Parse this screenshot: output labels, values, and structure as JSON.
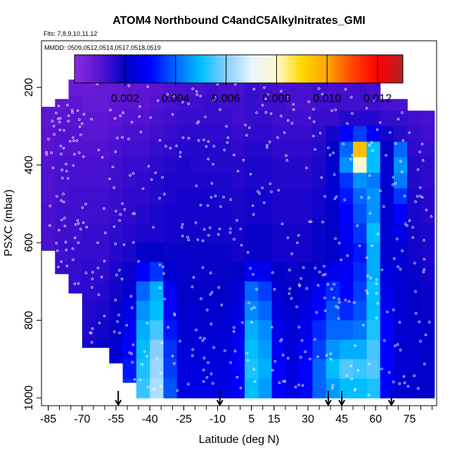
{
  "chart_data": {
    "type": "heatmap",
    "title": "ATOM4 Northbound C4andC5Alkylnitrates_GMI",
    "flights_label": "Flts: 7,8,9,10,11,12",
    "dates_label": "MMDD: 0509,0512,0514,0517,0518,0519",
    "xlabel": "Latitude (deg N)",
    "ylabel": "PSXC (mbar)",
    "xlim": [
      -88,
      87
    ],
    "ylim": [
      1020,
      80
    ],
    "x_ticks": [
      -85,
      -70,
      -55,
      -40,
      -25,
      -10,
      5,
      15,
      30,
      45,
      60,
      75
    ],
    "x_tick_labels": [
      "-85",
      "-70",
      "-55",
      "-40",
      "-25",
      "-10",
      "5",
      "15",
      "30",
      "45",
      "60",
      "75"
    ],
    "y_ticks": [
      200,
      400,
      600,
      800,
      1000
    ],
    "y_tick_labels": [
      "200",
      "400",
      "600",
      "800",
      "1000"
    ],
    "colorbar": {
      "min": 0.0,
      "max": 0.013,
      "ticks": [
        0.002,
        0.004,
        0.006,
        0.008,
        0.01,
        0.012
      ],
      "tick_labels": [
        "0.002",
        "0.004",
        "0.006",
        "0.008",
        "0.010",
        "0.012"
      ],
      "colors": [
        "#8a2be2",
        "#5a14d2",
        "#0000c8",
        "#0000ff",
        "#0066ff",
        "#00bfff",
        "#87ceff",
        "#e6f5ff",
        "#fffacd",
        "#ffd700",
        "#ffa500",
        "#ff4500",
        "#ff0000",
        "#b22222"
      ]
    },
    "arrows_lat": [
      -54,
      -9,
      39,
      45,
      67
    ],
    "lat_bins": [
      -88,
      -82,
      -76,
      -70,
      -64,
      -58,
      -52,
      -46,
      -40,
      -34,
      -28,
      -22,
      -16,
      -10,
      -4,
      2,
      8,
      14,
      20,
      26,
      32,
      38,
      44,
      50,
      56,
      62,
      68,
      74,
      80,
      86
    ],
    "p_bins": [
      180,
      220,
      260,
      300,
      340,
      380,
      420,
      460,
      500,
      550,
      600,
      650,
      700,
      750,
      800,
      850,
      900,
      950,
      1000
    ],
    "column_top_p": [
      250,
      230,
      180,
      180,
      180,
      180,
      180,
      180,
      180,
      180,
      180,
      180,
      180,
      180,
      180,
      180,
      180,
      180,
      180,
      180,
      180,
      180,
      180,
      180,
      180,
      230,
      230,
      260,
      260
    ],
    "column_bottom_p": [
      620,
      680,
      730,
      870,
      870,
      910,
      960,
      1000,
      1000,
      1000,
      1000,
      1000,
      1000,
      1000,
      1000,
      1000,
      1000,
      1000,
      1000,
      1000,
      1000,
      1000,
      1000,
      1000,
      1000,
      1000,
      1000,
      1000,
      1000
    ],
    "values": [
      [
        0.0008,
        0.0008,
        0.0007,
        0.0007,
        0.0008,
        0.0008,
        0.0009,
        0.0009,
        0.001,
        0.0011,
        0.0012,
        0.0012,
        0.0013,
        0.0012,
        0.0012,
        0.0014,
        0.0013,
        0.0012,
        0.0012,
        0.0012,
        0.0013,
        0.0012,
        0.0012,
        0.0013,
        0.0012,
        0.0011,
        0.0012,
        0.0012,
        0.0012
      ],
      [
        0.0009,
        0.0009,
        0.0009,
        0.0008,
        0.0008,
        0.0009,
        0.001,
        0.001,
        0.0011,
        0.0012,
        0.0013,
        0.0013,
        0.0014,
        0.0013,
        0.0013,
        0.0014,
        0.0013,
        0.0013,
        0.0012,
        0.0012,
        0.0013,
        0.0013,
        0.0013,
        0.0013,
        0.0013,
        0.0012,
        0.0012,
        0.0012,
        0.0012
      ],
      [
        0.0009,
        0.001,
        0.001,
        0.0009,
        0.0009,
        0.001,
        0.0011,
        0.0011,
        0.0012,
        0.0013,
        0.0014,
        0.0014,
        0.0014,
        0.0014,
        0.0013,
        0.0014,
        0.0014,
        0.0013,
        0.0013,
        0.0013,
        0.0014,
        0.0014,
        0.0016,
        0.0016,
        0.0016,
        0.0014,
        0.0014,
        0.0013,
        0.0012
      ],
      [
        0.001,
        0.0011,
        0.0011,
        0.001,
        0.001,
        0.0011,
        0.0012,
        0.0012,
        0.0013,
        0.0014,
        0.0015,
        0.0015,
        0.0015,
        0.0015,
        0.0014,
        0.0015,
        0.0015,
        0.0014,
        0.0014,
        0.0014,
        0.0015,
        0.0018,
        0.003,
        0.0036,
        0.003,
        0.0018,
        0.0016,
        0.0014,
        0.0013
      ],
      [
        0.001,
        0.0011,
        0.0011,
        0.0011,
        0.0011,
        0.0012,
        0.0013,
        0.0013,
        0.0014,
        0.0015,
        0.0016,
        0.0016,
        0.0016,
        0.0016,
        0.0015,
        0.0016,
        0.0016,
        0.0015,
        0.0015,
        0.0015,
        0.0016,
        0.002,
        0.004,
        0.0095,
        0.005,
        0.002,
        0.004,
        0.0015,
        0.0014
      ],
      [
        0.0011,
        0.0012,
        0.0012,
        0.0012,
        0.0012,
        0.0013,
        0.0014,
        0.0014,
        0.0015,
        0.0016,
        0.0017,
        0.0016,
        0.0016,
        0.0016,
        0.0016,
        0.0017,
        0.0017,
        0.0016,
        0.0016,
        0.0016,
        0.0017,
        0.0022,
        0.0045,
        0.008,
        0.005,
        0.0022,
        0.0045,
        0.0016,
        0.0015
      ],
      [
        0.0011,
        0.0012,
        0.0012,
        0.0012,
        0.0012,
        0.0013,
        0.0014,
        0.0015,
        0.0016,
        0.0017,
        0.0017,
        0.0017,
        0.0017,
        0.0017,
        0.0016,
        0.0017,
        0.0017,
        0.0016,
        0.0016,
        0.0016,
        0.0017,
        0.0022,
        0.0035,
        0.0045,
        0.0042,
        0.0022,
        0.0042,
        0.0016,
        0.0015
      ],
      [
        0.0011,
        0.0012,
        0.0013,
        0.0013,
        0.0013,
        0.0014,
        0.0015,
        0.0015,
        0.0016,
        0.0017,
        0.0018,
        0.0018,
        0.0018,
        0.0017,
        0.0017,
        0.0018,
        0.0018,
        0.0017,
        0.0017,
        0.0017,
        0.0018,
        0.0022,
        0.0032,
        0.004,
        0.0045,
        0.0022,
        0.0035,
        0.0017,
        0.0016
      ],
      [
        0.0012,
        0.0013,
        0.0013,
        0.0013,
        0.0013,
        0.0014,
        0.0015,
        0.0016,
        0.0017,
        0.0018,
        0.0018,
        0.0018,
        0.0018,
        0.0018,
        0.0017,
        0.0018,
        0.0018,
        0.0017,
        0.0017,
        0.0017,
        0.0018,
        0.002,
        0.003,
        0.0038,
        0.0045,
        0.0022,
        0.003,
        0.0017,
        0.0016
      ],
      [
        0.0012,
        0.0013,
        0.0013,
        0.0014,
        0.0014,
        0.0015,
        0.0016,
        0.0017,
        0.0017,
        0.0018,
        0.0018,
        0.0018,
        0.0018,
        0.0018,
        0.0018,
        0.0019,
        0.0019,
        0.0018,
        0.0018,
        0.0018,
        0.0019,
        0.002,
        0.0028,
        0.0035,
        0.005,
        0.0022,
        0.0025,
        0.0018,
        0.0017
      ],
      [
        0.0012,
        0.0013,
        0.0014,
        0.0014,
        0.0014,
        0.0016,
        0.0017,
        0.002,
        0.002,
        0.0019,
        0.0019,
        0.0019,
        0.0019,
        0.0019,
        0.0018,
        0.0019,
        0.0019,
        0.0018,
        0.0018,
        0.0018,
        0.0019,
        0.002,
        0.0026,
        0.0032,
        0.0048,
        0.0022,
        0.0022,
        0.0018,
        0.0017
      ],
      [
        0.0013,
        0.0014,
        0.0014,
        0.0015,
        0.0015,
        0.0017,
        0.0019,
        0.003,
        0.0035,
        0.0022,
        0.0019,
        0.0019,
        0.0019,
        0.0019,
        0.002,
        0.0028,
        0.0026,
        0.002,
        0.0019,
        0.002,
        0.0022,
        0.0026,
        0.0028,
        0.0034,
        0.0048,
        0.0024,
        0.0022,
        0.0019,
        0.0018
      ],
      [
        0.0013,
        0.0014,
        0.0015,
        0.0015,
        0.0016,
        0.0018,
        0.0022,
        0.004,
        0.0048,
        0.0028,
        0.002,
        0.002,
        0.002,
        0.002,
        0.0022,
        0.004,
        0.0036,
        0.0022,
        0.002,
        0.0022,
        0.0028,
        0.0034,
        0.003,
        0.0036,
        0.005,
        0.0026,
        0.0022,
        0.002,
        0.0019
      ],
      [
        0.0014,
        0.0015,
        0.0015,
        0.0016,
        0.0017,
        0.0019,
        0.0026,
        0.0045,
        0.005,
        0.003,
        0.0021,
        0.0021,
        0.0021,
        0.0021,
        0.0024,
        0.0044,
        0.004,
        0.0024,
        0.0021,
        0.0024,
        0.003,
        0.0038,
        0.0034,
        0.0038,
        0.005,
        0.0028,
        0.0022,
        0.002,
        0.0019
      ],
      [
        0.0014,
        0.0015,
        0.0016,
        0.0017,
        0.0018,
        0.002,
        0.0028,
        0.0048,
        0.0055,
        0.0032,
        0.0022,
        0.0022,
        0.0022,
        0.0022,
        0.0026,
        0.0048,
        0.0044,
        0.0026,
        0.0022,
        0.0026,
        0.0034,
        0.004,
        0.004,
        0.0042,
        0.0052,
        0.003,
        0.0022,
        0.0021,
        0.002
      ],
      [
        0.0015,
        0.0016,
        0.0017,
        0.0018,
        0.0019,
        0.0022,
        0.003,
        0.005,
        0.006,
        0.0035,
        0.0023,
        0.0023,
        0.0023,
        0.0023,
        0.0028,
        0.005,
        0.0046,
        0.0028,
        0.0023,
        0.0028,
        0.0036,
        0.0045,
        0.0048,
        0.0048,
        0.0055,
        0.003,
        0.0022,
        0.0021,
        0.002
      ],
      [
        0.0015,
        0.0016,
        0.0017,
        0.0018,
        0.002,
        0.0024,
        0.0032,
        0.0052,
        0.0062,
        0.0036,
        0.0024,
        0.0024,
        0.0024,
        0.0024,
        0.003,
        0.0052,
        0.0048,
        0.003,
        0.0024,
        0.003,
        0.004,
        0.005,
        0.0056,
        0.0054,
        0.0056,
        0.003,
        0.0022,
        0.0021,
        0.002
      ],
      [
        0.0016,
        0.0017,
        0.0018,
        0.0019,
        0.002,
        0.0024,
        0.0034,
        0.0054,
        0.0064,
        0.0038,
        0.0025,
        0.0025,
        0.0025,
        0.0025,
        0.003,
        0.005,
        0.0046,
        0.003,
        0.0025,
        0.003,
        0.004,
        0.0046,
        0.005,
        0.005,
        0.0052,
        0.003,
        0.0022,
        0.0021,
        0.002
      ]
    ]
  }
}
